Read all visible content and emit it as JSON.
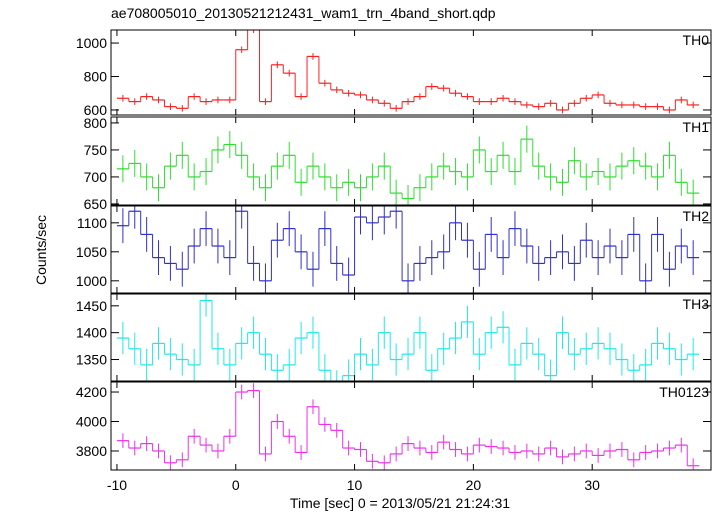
{
  "chart_data": [
    {
      "type": "step",
      "title": "ae708005010_20130521212431_wam1_trn_4band_short.qdp",
      "label": "TH0",
      "color": "#ff2020",
      "x": [
        -9.5,
        -8.5,
        -7.5,
        -6.5,
        -5.5,
        -4.5,
        -3.5,
        -2.5,
        -1.5,
        -0.5,
        0.5,
        1.5,
        2.5,
        3.5,
        4.5,
        5.5,
        6.5,
        7.5,
        8.5,
        9.5,
        10.5,
        11.5,
        12.5,
        13.5,
        14.5,
        15.5,
        16.5,
        17.5,
        18.5,
        19.5,
        20.5,
        21.5,
        22.5,
        23.5,
        24.5,
        25.5,
        26.5,
        27.5,
        28.5,
        29.5,
        30.5,
        31.5,
        32.5,
        33.5,
        34.5,
        35.5,
        36.5,
        37.5,
        38.5
      ],
      "values": [
        670,
        650,
        680,
        660,
        620,
        610,
        680,
        650,
        660,
        660,
        960,
        1080,
        650,
        870,
        820,
        680,
        920,
        760,
        720,
        700,
        690,
        660,
        640,
        610,
        650,
        680,
        740,
        730,
        700,
        680,
        650,
        650,
        670,
        650,
        630,
        620,
        640,
        600,
        640,
        670,
        690,
        640,
        630,
        630,
        620,
        620,
        600,
        660,
        630
      ],
      "error": 20,
      "xlim": [
        -10.5,
        40
      ],
      "ylim": [
        570,
        1078
      ],
      "yticks": [
        600,
        800,
        1000
      ]
    },
    {
      "type": "step",
      "label": "TH1",
      "color": "#30dd30",
      "x": [
        -9.5,
        -8.5,
        -7.5,
        -6.5,
        -5.5,
        -4.5,
        -3.5,
        -2.5,
        -1.5,
        -0.5,
        0.5,
        1.5,
        2.5,
        3.5,
        4.5,
        5.5,
        6.5,
        7.5,
        8.5,
        9.5,
        10.5,
        11.5,
        12.5,
        13.5,
        14.5,
        15.5,
        16.5,
        17.5,
        18.5,
        19.5,
        20.5,
        21.5,
        22.5,
        23.5,
        24.5,
        25.5,
        26.5,
        27.5,
        28.5,
        29.5,
        30.5,
        31.5,
        32.5,
        33.5,
        34.5,
        35.5,
        36.5,
        37.5,
        38.5
      ],
      "values": [
        715,
        725,
        700,
        680,
        720,
        740,
        700,
        710,
        750,
        760,
        740,
        700,
        680,
        720,
        740,
        690,
        720,
        700,
        680,
        690,
        680,
        700,
        720,
        670,
        660,
        680,
        700,
        720,
        710,
        700,
        750,
        710,
        740,
        710,
        770,
        720,
        700,
        690,
        730,
        700,
        710,
        700,
        720,
        730,
        720,
        700,
        740,
        690,
        670
      ],
      "error": 25,
      "xlim": [
        -10.5,
        40
      ],
      "ylim": [
        648,
        811
      ],
      "yticks": [
        650,
        700,
        750,
        800
      ]
    },
    {
      "type": "step",
      "label": "TH2",
      "ylabel": "Counts/sec",
      "color": "#3030cc",
      "x": [
        -9.5,
        -8.5,
        -7.5,
        -6.5,
        -5.5,
        -4.5,
        -3.5,
        -2.5,
        -1.5,
        -0.5,
        0.5,
        1.5,
        2.5,
        3.5,
        4.5,
        5.5,
        6.5,
        7.5,
        8.5,
        9.5,
        10.5,
        11.5,
        12.5,
        13.5,
        14.5,
        15.5,
        16.5,
        17.5,
        18.5,
        19.5,
        20.5,
        21.5,
        22.5,
        23.5,
        24.5,
        25.5,
        26.5,
        27.5,
        28.5,
        29.5,
        30.5,
        31.5,
        32.5,
        33.5,
        34.5,
        35.5,
        36.5,
        37.5,
        38.5
      ],
      "values": [
        1095,
        1120,
        1080,
        1040,
        1030,
        1020,
        1060,
        1090,
        1060,
        1040,
        1120,
        1030,
        1000,
        1070,
        1090,
        1050,
        1020,
        1090,
        1030,
        1010,
        1110,
        1100,
        1110,
        1120,
        1000,
        1030,
        1040,
        1050,
        1100,
        1070,
        1020,
        1080,
        1040,
        1090,
        1060,
        1030,
        1040,
        1050,
        1030,
        1070,
        1040,
        1060,
        1040,
        1080,
        1000,
        1080,
        1020,
        1060,
        1040
      ],
      "error": 30,
      "xlim": [
        -10.5,
        40
      ],
      "ylim": [
        979,
        1129
      ],
      "yticks": [
        1000,
        1050,
        1100
      ]
    },
    {
      "type": "step",
      "label": "TH3",
      "color": "#20e8e8",
      "x": [
        -9.5,
        -8.5,
        -7.5,
        -6.5,
        -5.5,
        -4.5,
        -3.5,
        -2.5,
        -1.5,
        -0.5,
        0.5,
        1.5,
        2.5,
        3.5,
        4.5,
        5.5,
        6.5,
        7.5,
        8.5,
        9.5,
        10.5,
        11.5,
        12.5,
        13.5,
        14.5,
        15.5,
        16.5,
        17.5,
        18.5,
        19.5,
        20.5,
        21.5,
        22.5,
        23.5,
        24.5,
        25.5,
        26.5,
        27.5,
        28.5,
        29.5,
        30.5,
        31.5,
        32.5,
        33.5,
        34.5,
        35.5,
        36.5,
        37.5,
        38.5
      ],
      "values": [
        1390,
        1370,
        1340,
        1380,
        1360,
        1350,
        1340,
        1460,
        1370,
        1340,
        1380,
        1400,
        1360,
        1330,
        1340,
        1390,
        1400,
        1330,
        1300,
        1320,
        1360,
        1340,
        1400,
        1350,
        1360,
        1400,
        1330,
        1370,
        1390,
        1420,
        1360,
        1400,
        1410,
        1340,
        1380,
        1360,
        1320,
        1400,
        1360,
        1370,
        1380,
        1370,
        1350,
        1330,
        1340,
        1380,
        1370,
        1350,
        1360
      ],
      "error": 30,
      "xlim": [
        -10.5,
        40
      ],
      "ylim": [
        1310,
        1472
      ],
      "yticks": [
        1350,
        1400,
        1450
      ]
    },
    {
      "type": "step",
      "label": "TH0123",
      "xlabel": "Time [sec] 0 = 2013/05/21 21:24:31",
      "color": "#ee30ee",
      "x": [
        -9.5,
        -8.5,
        -7.5,
        -6.5,
        -5.5,
        -4.5,
        -3.5,
        -2.5,
        -1.5,
        -0.5,
        0.5,
        1.5,
        2.5,
        3.5,
        4.5,
        5.5,
        6.5,
        7.5,
        8.5,
        9.5,
        10.5,
        11.5,
        12.5,
        13.5,
        14.5,
        15.5,
        16.5,
        17.5,
        18.5,
        19.5,
        20.5,
        21.5,
        22.5,
        23.5,
        24.5,
        25.5,
        26.5,
        27.5,
        28.5,
        29.5,
        30.5,
        31.5,
        32.5,
        33.5,
        34.5,
        35.5,
        36.5,
        37.5,
        38.5
      ],
      "values": [
        3870,
        3820,
        3850,
        3800,
        3720,
        3740,
        3900,
        3840,
        3800,
        3900,
        4200,
        4210,
        3780,
        4000,
        3900,
        3790,
        4100,
        3980,
        3940,
        3820,
        3810,
        3730,
        3720,
        3780,
        3850,
        3820,
        3790,
        3860,
        3810,
        3780,
        3840,
        3830,
        3820,
        3790,
        3800,
        3780,
        3820,
        3760,
        3780,
        3800,
        3770,
        3800,
        3810,
        3740,
        3790,
        3800,
        3820,
        3840,
        3700
      ],
      "error": 50,
      "xlim": [
        -10.5,
        40
      ],
      "ylim": [
        3671,
        4268
      ],
      "yticks": [
        3800,
        4000,
        4200
      ],
      "xticks": [
        -10,
        0,
        10,
        20,
        30
      ]
    }
  ]
}
